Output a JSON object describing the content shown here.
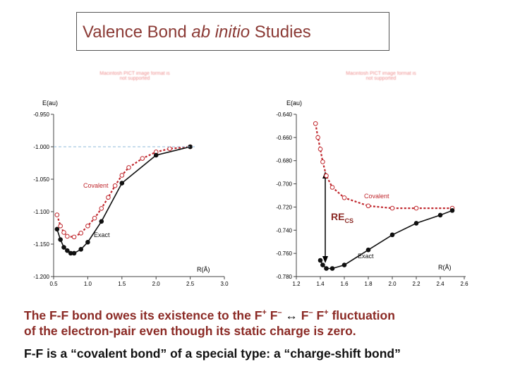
{
  "title": {
    "part1": "Valence Bond ",
    "part2": "ab initio",
    "part3": " Studies"
  },
  "logo_text": "Macintosh PICT image format is not supported",
  "chart_data": [
    {
      "type": "line",
      "ylabel": "E(au)",
      "xlabel": "R(Å)",
      "xlim": [
        0.5,
        3.0
      ],
      "ylim": [
        -1.2,
        -0.95
      ],
      "xticks": [
        "0.5",
        "1.0",
        "1.5",
        "2.0",
        "2.5",
        "3.0"
      ],
      "yticks": [
        "-0.950",
        "-1.000",
        "-1.050",
        "-1.100",
        "-1.150",
        "-1.200"
      ],
      "reference_line_y": -1.0,
      "grid": false,
      "series": [
        {
          "name": "Covalent",
          "color": "#c0272d",
          "x": [
            0.55,
            0.6,
            0.65,
            0.7,
            0.8,
            0.9,
            1.0,
            1.1,
            1.2,
            1.3,
            1.4,
            1.5,
            1.6,
            1.8,
            2.0,
            2.2,
            2.5
          ],
          "y": [
            -1.105,
            -1.122,
            -1.132,
            -1.138,
            -1.139,
            -1.133,
            -1.122,
            -1.11,
            -1.095,
            -1.078,
            -1.06,
            -1.044,
            -1.032,
            -1.018,
            -1.008,
            -1.003,
            -1.0
          ]
        },
        {
          "name": "Exact",
          "color": "#111111",
          "x": [
            0.55,
            0.6,
            0.65,
            0.7,
            0.75,
            0.8,
            0.9,
            1.0,
            1.2,
            1.5,
            2.0,
            2.5
          ],
          "y": [
            -1.127,
            -1.143,
            -1.155,
            -1.16,
            -1.164,
            -1.164,
            -1.158,
            -1.147,
            -1.115,
            -1.056,
            -1.013,
            -1.0
          ]
        }
      ]
    },
    {
      "type": "line",
      "ylabel": "E(au)",
      "xlabel": "R(Å)",
      "xlim": [
        1.2,
        2.6
      ],
      "ylim": [
        -0.78,
        -0.64
      ],
      "xticks": [
        "1.2",
        "1.4",
        "1.6",
        "1.8",
        "2.0",
        "2.2",
        "2.4",
        "2.6"
      ],
      "yticks": [
        "-0.640",
        "-0.660",
        "-0.680",
        "-0.700",
        "-0.720",
        "-0.740",
        "-0.760",
        "-0.780"
      ],
      "annotation": "RECS",
      "grid": false,
      "series": [
        {
          "name": "Covalent",
          "color": "#c0272d",
          "x": [
            1.36,
            1.38,
            1.4,
            1.42,
            1.45,
            1.5,
            1.6,
            1.8,
            2.0,
            2.2,
            2.5
          ],
          "y": [
            -0.648,
            -0.66,
            -0.67,
            -0.681,
            -0.693,
            -0.703,
            -0.712,
            -0.719,
            -0.721,
            -0.721,
            -0.721
          ]
        },
        {
          "name": "Exact",
          "color": "#111111",
          "x": [
            1.4,
            1.42,
            1.45,
            1.5,
            1.6,
            1.8,
            2.0,
            2.2,
            2.4,
            2.5
          ],
          "y": [
            -0.766,
            -0.77,
            -0.773,
            -0.773,
            -0.77,
            -0.757,
            -0.744,
            -0.734,
            -0.727,
            -0.723
          ]
        }
      ]
    }
  ],
  "labels": {
    "left_covalent": "Covalent",
    "left_exact": "Exact",
    "right_covalent": "Covalent",
    "right_exact": "Exact",
    "recs_main": "RE",
    "recs_sub": "CS"
  },
  "caption": {
    "line1_a": "The F-F bond owes its existence to the F",
    "line1_sup1": "+",
    "line1_b": " F",
    "line1_sup2": "–",
    "line1_arrow": " ↔ ",
    "line1_c": "F",
    "line1_sup3": "–",
    "line1_d": " F",
    "line1_sup4": "+",
    "line1_e": " fluctuation",
    "line2": "of the electron-pair even though its static charge is zero.",
    "line3": "F-F is a “covalent bond” of a special type: a “charge-shift bond”"
  },
  "colors": {
    "title": "#8b3a35",
    "covalent": "#c0272d",
    "exact": "#111111",
    "reference": "#8fb8d8"
  }
}
